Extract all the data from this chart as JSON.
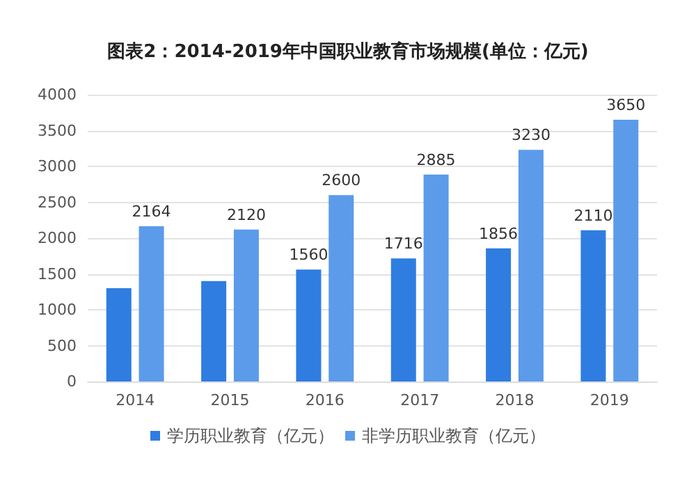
{
  "chart_data": {
    "type": "bar",
    "title": "图表2：2014-2019年中国职业教育市场规模(单位：亿元)",
    "categories": [
      "2014",
      "2015",
      "2016",
      "2017",
      "2018",
      "2019"
    ],
    "series": [
      {
        "name": "学历职业教育（亿元）",
        "color": "#2f7de1",
        "values": [
          1300,
          1400,
          1560,
          1716,
          1856,
          2110
        ],
        "value_labels": [
          null,
          null,
          "1560",
          "1716",
          "1856",
          "2110"
        ]
      },
      {
        "name": "非学历职业教育（亿元）",
        "color": "#5b9bea",
        "values": [
          2164,
          2120,
          2600,
          2885,
          3230,
          3650
        ],
        "value_labels": [
          "2164",
          "2120",
          "2600",
          "2885",
          "3230",
          "3650"
        ]
      }
    ],
    "ylim": [
      0,
      4000
    ],
    "yticks": [
      0,
      500,
      1000,
      1500,
      2000,
      2500,
      3000,
      3500,
      4000
    ],
    "grid": "y",
    "legend": "bottom"
  }
}
